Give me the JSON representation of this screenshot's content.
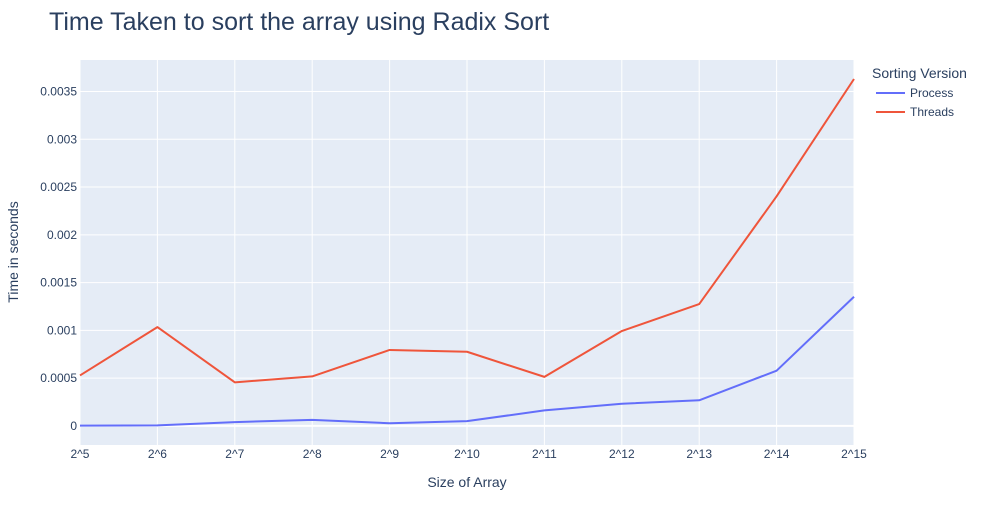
{
  "chart_data": {
    "type": "line",
    "title": "Time Taken to sort the array using Radix Sort",
    "xlabel": "Size of Array",
    "ylabel": "Time in seconds",
    "categories": [
      "2^5",
      "2^6",
      "2^7",
      "2^8",
      "2^9",
      "2^10",
      "2^11",
      "2^12",
      "2^13",
      "2^14",
      "2^15"
    ],
    "y_ticks": [
      0,
      0.0005,
      0.001,
      0.0015,
      0.002,
      0.0025,
      0.003,
      0.0035
    ],
    "y_tick_labels": [
      "0",
      "0.0005",
      "0.001",
      "0.0015",
      "0.002",
      "0.0025",
      "0.003",
      "0.0035"
    ],
    "ylim": [
      -0.0002,
      0.00383
    ],
    "grid": true,
    "legend": {
      "title": "Sorting Version",
      "position": "top-right"
    },
    "series": [
      {
        "name": "Process",
        "color": "#636efa",
        "values": [
          3e-06,
          5e-06,
          4e-05,
          6.3e-05,
          2.8e-05,
          5e-05,
          0.000162,
          0.000232,
          0.000268,
          0.000578,
          0.001352
        ]
      },
      {
        "name": "Threads",
        "color": "#ef553b",
        "values": [
          0.000528,
          0.001034,
          0.000456,
          0.000518,
          0.000795,
          0.000776,
          0.000513,
          0.000993,
          0.001275,
          0.002403,
          0.003631
        ]
      }
    ]
  }
}
